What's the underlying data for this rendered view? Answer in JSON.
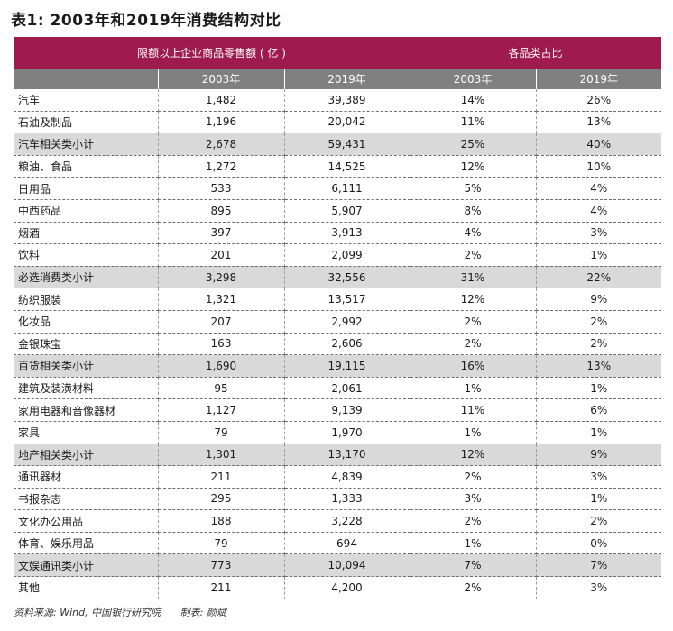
{
  "title": "表1: 2003年和2019年消费结构对比",
  "headers": {
    "group_sales": "限额以上企业商品零售额 ( 亿 )",
    "group_share": "各品类占比",
    "years": [
      "2003年",
      "2019年",
      "2003年",
      "2019年"
    ]
  },
  "rows": [
    {
      "name": "汽车",
      "s2003": "1,482",
      "s2019": "39,389",
      "p2003": "14%",
      "p2019": "26%",
      "subtotal": false
    },
    {
      "name": "石油及制品",
      "s2003": "1,196",
      "s2019": "20,042",
      "p2003": "11%",
      "p2019": "13%",
      "subtotal": false
    },
    {
      "name": "汽车相关类小计",
      "s2003": "2,678",
      "s2019": "59,431",
      "p2003": "25%",
      "p2019": "40%",
      "subtotal": true
    },
    {
      "name": "粮油、食品",
      "s2003": "1,272",
      "s2019": "14,525",
      "p2003": "12%",
      "p2019": "10%",
      "subtotal": false
    },
    {
      "name": "日用品",
      "s2003": "533",
      "s2019": "6,111",
      "p2003": "5%",
      "p2019": "4%",
      "subtotal": false
    },
    {
      "name": "中西药品",
      "s2003": "895",
      "s2019": "5,907",
      "p2003": "8%",
      "p2019": "4%",
      "subtotal": false
    },
    {
      "name": "烟酒",
      "s2003": "397",
      "s2019": "3,913",
      "p2003": "4%",
      "p2019": "3%",
      "subtotal": false
    },
    {
      "name": "饮料",
      "s2003": "201",
      "s2019": "2,099",
      "p2003": "2%",
      "p2019": "1%",
      "subtotal": false
    },
    {
      "name": "必选消费类小计",
      "s2003": "3,298",
      "s2019": "32,556",
      "p2003": "31%",
      "p2019": "22%",
      "subtotal": true
    },
    {
      "name": "纺织服装",
      "s2003": "1,321",
      "s2019": "13,517",
      "p2003": "12%",
      "p2019": "9%",
      "subtotal": false
    },
    {
      "name": "化妆品",
      "s2003": "207",
      "s2019": "2,992",
      "p2003": "2%",
      "p2019": "2%",
      "subtotal": false
    },
    {
      "name": "金银珠宝",
      "s2003": "163",
      "s2019": "2,606",
      "p2003": "2%",
      "p2019": "2%",
      "subtotal": false
    },
    {
      "name": "百货相关类小计",
      "s2003": "1,690",
      "s2019": "19,115",
      "p2003": "16%",
      "p2019": "13%",
      "subtotal": true
    },
    {
      "name": "建筑及装潢材料",
      "s2003": "95",
      "s2019": "2,061",
      "p2003": "1%",
      "p2019": "1%",
      "subtotal": false
    },
    {
      "name": "家用电器和音像器材",
      "s2003": "1,127",
      "s2019": "9,139",
      "p2003": "11%",
      "p2019": "6%",
      "subtotal": false
    },
    {
      "name": "家具",
      "s2003": "79",
      "s2019": "1,970",
      "p2003": "1%",
      "p2019": "1%",
      "subtotal": false
    },
    {
      "name": "地产相关类小计",
      "s2003": "1,301",
      "s2019": "13,170",
      "p2003": "12%",
      "p2019": "9%",
      "subtotal": true
    },
    {
      "name": "通讯器材",
      "s2003": "211",
      "s2019": "4,839",
      "p2003": "2%",
      "p2019": "3%",
      "subtotal": false
    },
    {
      "name": "书报杂志",
      "s2003": "295",
      "s2019": "1,333",
      "p2003": "3%",
      "p2019": "1%",
      "subtotal": false
    },
    {
      "name": "文化办公用品",
      "s2003": "188",
      "s2019": "3,228",
      "p2003": "2%",
      "p2019": "2%",
      "subtotal": false
    },
    {
      "name": "体育、娱乐用品",
      "s2003": "79",
      "s2019": "694",
      "p2003": "1%",
      "p2019": "0%",
      "subtotal": false
    },
    {
      "name": "文娱通讯类小计",
      "s2003": "773",
      "s2019": "10,094",
      "p2003": "7%",
      "p2019": "7%",
      "subtotal": true
    },
    {
      "name": "其他",
      "s2003": "211",
      "s2019": "4,200",
      "p2003": "2%",
      "p2019": "3%",
      "subtotal": false
    }
  ],
  "footer": {
    "source": "资料来源: Wind, 中国银行研究院",
    "maker": "制表: 颜斌"
  },
  "colors": {
    "header_primary": "#a01b4d",
    "header_secondary": "#808080",
    "subtotal_row": "#d9d9d9"
  }
}
